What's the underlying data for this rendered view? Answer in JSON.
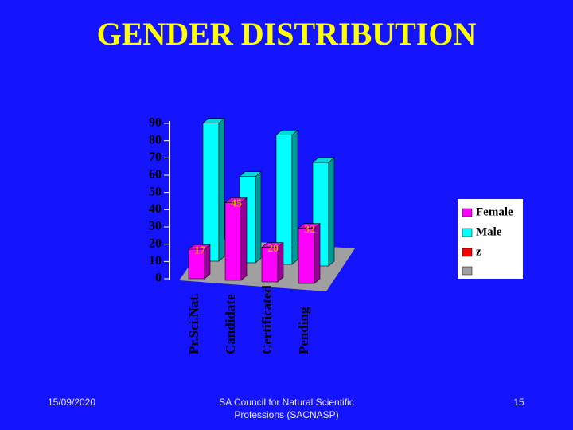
{
  "chart_data": {
    "type": "bar3d",
    "title": "GENDER DISTRIBUTION",
    "categories": [
      "Pr.Sci.Nat.",
      "Candidate",
      "Certificated",
      "Pending"
    ],
    "series": [
      {
        "name": "Female",
        "color": "#ff00ff",
        "values": [
          17,
          45,
          20,
          32
        ]
      },
      {
        "name": "Male",
        "color": "#00ffff",
        "values": [
          80,
          50,
          75,
          60
        ]
      },
      {
        "name": "z",
        "color": "#ff0000",
        "values": [
          null,
          null,
          null,
          null
        ]
      }
    ],
    "labeled_series": 0,
    "ylim": [
      0,
      90
    ],
    "yticks": [
      0,
      10,
      20,
      30,
      40,
      50,
      60,
      70,
      80,
      90
    ]
  },
  "footer": {
    "date": "15/09/2020",
    "org": [
      "SA Council for Natural Scientific",
      "Professions (SACNASP)"
    ],
    "page": "15"
  }
}
